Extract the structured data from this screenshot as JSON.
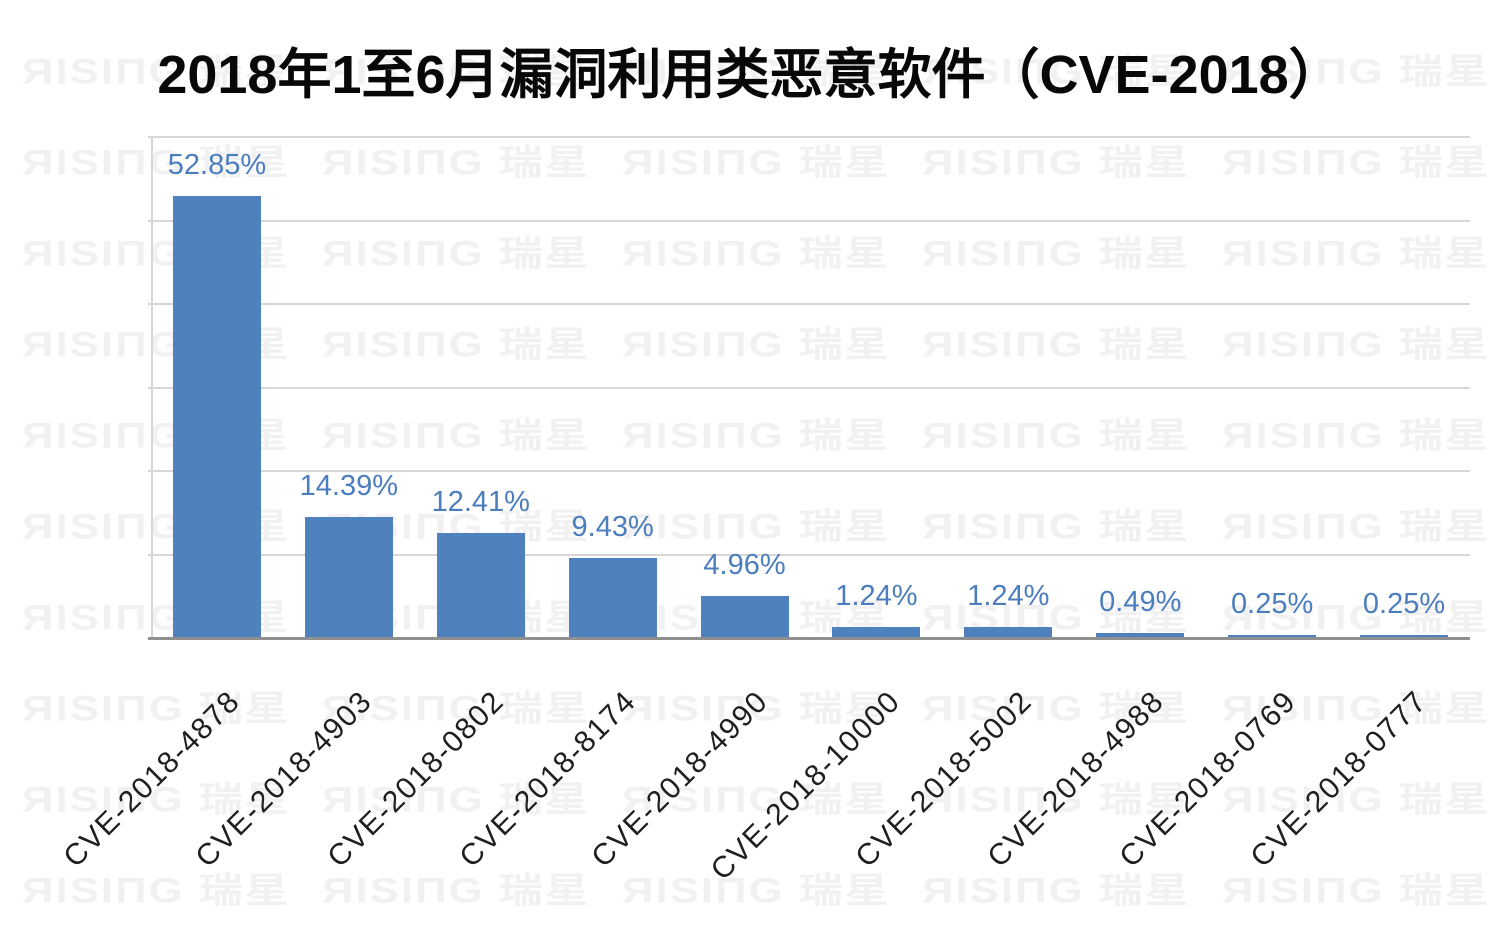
{
  "chart_data": {
    "type": "bar",
    "title": "2018年1至6月漏洞利用类恶意软件（CVE-2018）",
    "categories": [
      "CVE-2018-4878",
      "CVE-2018-4903",
      "CVE-2018-0802",
      "CVE-2018-8174",
      "CVE-2018-4990",
      "CVE-2018-10000",
      "CVE-2018-5002",
      "CVE-2018-4988",
      "CVE-2018-0769",
      "CVE-2018-0777"
    ],
    "values": [
      52.85,
      14.39,
      12.41,
      9.43,
      4.96,
      1.24,
      1.24,
      0.49,
      0.25,
      0.25
    ],
    "value_labels": [
      "52.85%",
      "14.39%",
      "12.41%",
      "9.43%",
      "4.96%",
      "1.24%",
      "1.24%",
      "0.49%",
      "0.25%",
      "0.25%"
    ],
    "xlabel": "",
    "ylabel": "",
    "ylim": [
      0,
      60
    ],
    "gridline_interval": 10,
    "grid": true,
    "legend": false,
    "y_tick_labels_shown": false,
    "bar_color": "#4E81BD",
    "value_label_color": "#4C7EBD",
    "gridline_color": "#D7D7D7",
    "axis_line_color": "#8F8F8F"
  },
  "watermark": {
    "brand": "RISING 瑞星",
    "display": "ЯIЅIПG 瑞星",
    "color": "#F1F1F1"
  }
}
